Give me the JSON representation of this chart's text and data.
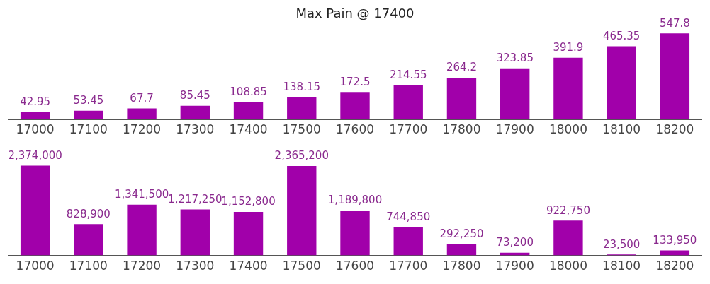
{
  "chart_data": [
    {
      "type": "bar",
      "title": "Max Pain @ 17400",
      "categories": [
        "17000",
        "17100",
        "17200",
        "17300",
        "17400",
        "17500",
        "17600",
        "17700",
        "17800",
        "17900",
        "18000",
        "18100",
        "18200"
      ],
      "values": [
        42.95,
        53.45,
        67.7,
        85.45,
        108.85,
        138.15,
        172.5,
        214.55,
        264.2,
        323.85,
        391.9,
        465.35,
        547.8
      ],
      "color": "#a100aa",
      "data_labels": true,
      "tick_labels": "x"
    },
    {
      "type": "bar",
      "categories": [
        "17000",
        "17100",
        "17200",
        "17300",
        "17400",
        "17500",
        "17600",
        "17700",
        "17800",
        "17900",
        "18000",
        "18100",
        "18200"
      ],
      "values": [
        2374000,
        828900,
        1341500,
        1217250,
        1152800,
        2365200,
        1189800,
        744850,
        292250,
        73200,
        922750,
        23500,
        133950
      ],
      "value_labels": [
        "2,374,000",
        "828,900",
        "1,341,500",
        "1,217,250",
        "1,152,800",
        "2,365,200",
        "1,189,800",
        "744,850",
        "292,250",
        "73,200",
        "922,750",
        "23,500",
        "133,950"
      ],
      "color": "#a100aa",
      "tick_labels": "x"
    }
  ]
}
